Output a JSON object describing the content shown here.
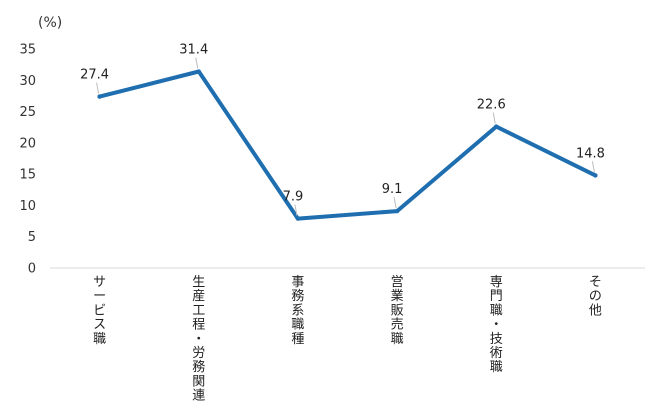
{
  "chart_data": {
    "type": "line",
    "title": "",
    "xlabel": "",
    "ylabel": "(%)",
    "ylim": [
      0,
      35
    ],
    "yticks": [
      0,
      5,
      10,
      15,
      20,
      25,
      30,
      35
    ],
    "categories": [
      "サービス職",
      "生産工程・労務関連",
      "事務系職種",
      "営業販売職",
      "専門職・技術職",
      "その他"
    ],
    "series": [
      {
        "values": [
          27.4,
          31.4,
          7.9,
          9.1,
          22.6,
          14.8
        ]
      }
    ],
    "data_labels": [
      "27.4",
      "31.4",
      "7.9",
      "9.1",
      "22.6",
      "14.8"
    ],
    "grid": false,
    "legend": "none",
    "line_color": "#1f6fb0"
  }
}
